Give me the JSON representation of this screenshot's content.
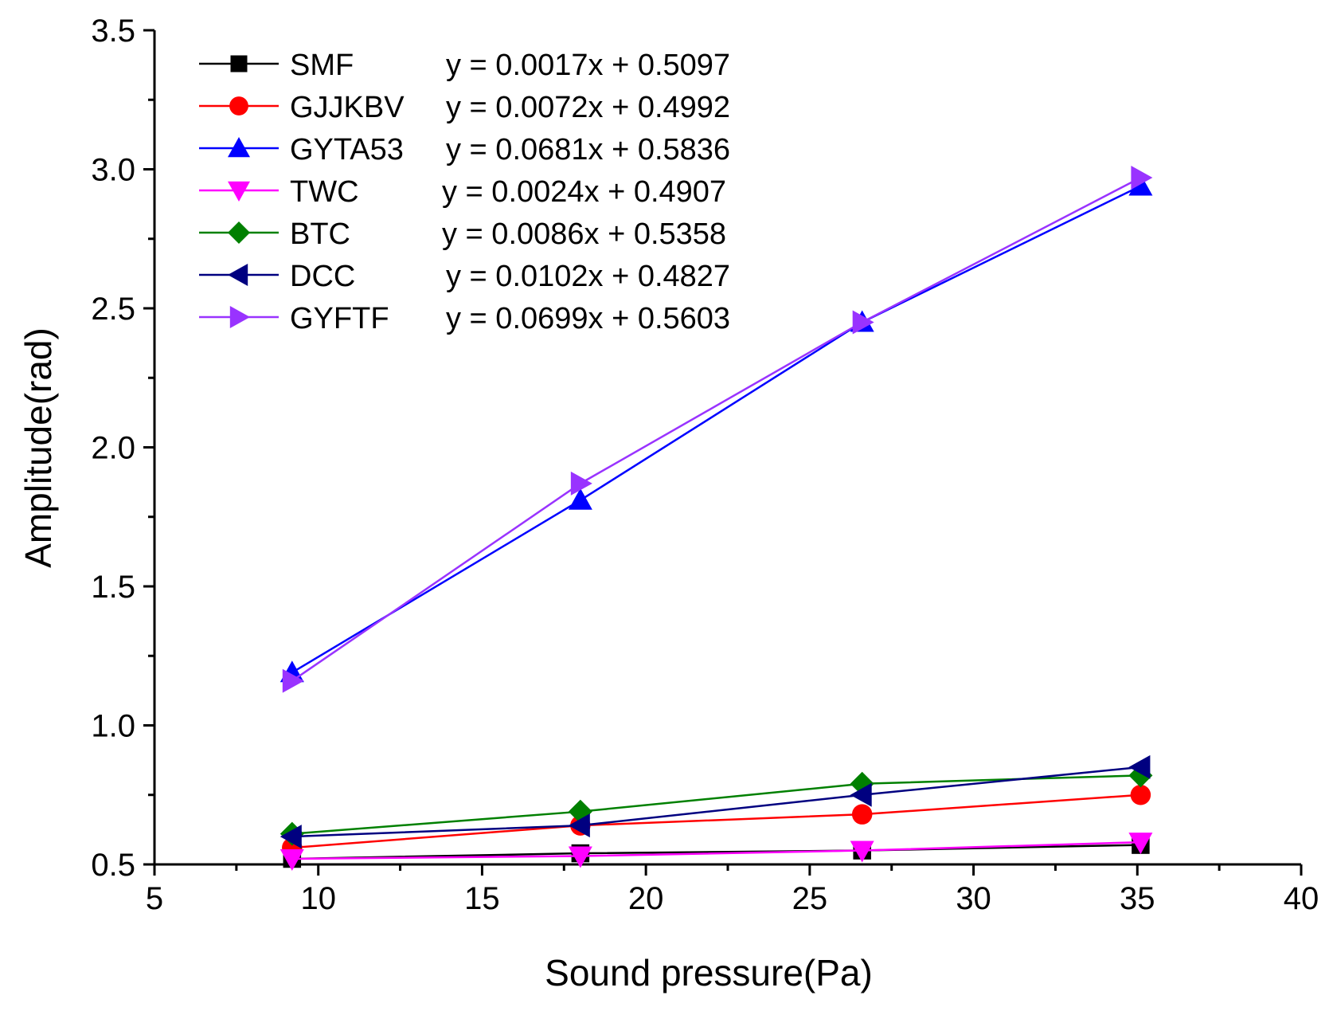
{
  "chart_data": {
    "type": "line",
    "title": "",
    "xlabel": "Sound pressure(Pa)",
    "ylabel": "Amplitude(rad)",
    "xlim": [
      5,
      40
    ],
    "ylim": [
      0.5,
      3.5
    ],
    "xticks": [
      "5",
      "10",
      "15",
      "20",
      "25",
      "30",
      "35",
      "40"
    ],
    "yticks": [
      "0.5",
      "1.0",
      "1.5",
      "2.0",
      "2.5",
      "3.0",
      "3.5"
    ],
    "grid": false,
    "legend_position": "top-left",
    "x": [
      9.2,
      18.0,
      26.6,
      35.1
    ],
    "series": [
      {
        "name": "SMF",
        "equation": "y = 0.0017x + 0.5097",
        "color": "#000000",
        "marker": "square",
        "values": [
          0.52,
          0.54,
          0.55,
          0.57
        ]
      },
      {
        "name": "GJJKBV",
        "equation": "y = 0.0072x + 0.4992",
        "color": "#ff0000",
        "marker": "circle",
        "values": [
          0.56,
          0.64,
          0.68,
          0.75
        ]
      },
      {
        "name": "GYTA53",
        "equation": "y = 0.0681x + 0.5836",
        "color": "#0000ff",
        "marker": "triangle-up",
        "values": [
          1.19,
          1.81,
          2.45,
          2.94
        ]
      },
      {
        "name": "TWC",
        "equation": "y = 0.0024x + 0.4907",
        "color": "#ff00ff",
        "marker": "triangle-down",
        "values": [
          0.52,
          0.53,
          0.55,
          0.58
        ]
      },
      {
        "name": "BTC",
        "equation": "y = 0.0086x + 0.5358",
        "color": "#008000",
        "marker": "diamond",
        "values": [
          0.61,
          0.69,
          0.79,
          0.82
        ]
      },
      {
        "name": "DCC",
        "equation": "y = 0.0102x + 0.4827",
        "color": "#000080",
        "marker": "triangle-left",
        "values": [
          0.6,
          0.64,
          0.75,
          0.85
        ]
      },
      {
        "name": "GYFTF",
        "equation": "y = 0.0699x + 0.5603",
        "color": "#9933ff",
        "marker": "triangle-right",
        "values": [
          1.16,
          1.87,
          2.45,
          2.97
        ]
      }
    ]
  }
}
